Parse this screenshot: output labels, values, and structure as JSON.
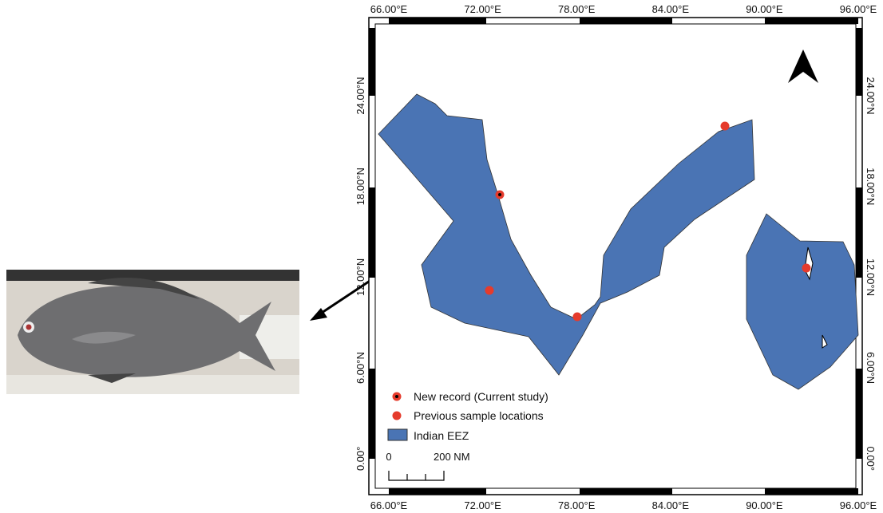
{
  "map": {
    "lon_labels": [
      "66.00°E",
      "72.00°E",
      "78.00°E",
      "84.00°E",
      "90.00°E",
      "96.00°E"
    ],
    "lat_labels": [
      "24.00°N",
      "18.00°N",
      "12.00°N",
      "6.00°N",
      "0.00°"
    ],
    "legend": [
      "New record (Current study)",
      "Previous sample locations",
      "Indian EEZ"
    ],
    "scale": {
      "start": "0",
      "end": "200 NM"
    }
  }
}
